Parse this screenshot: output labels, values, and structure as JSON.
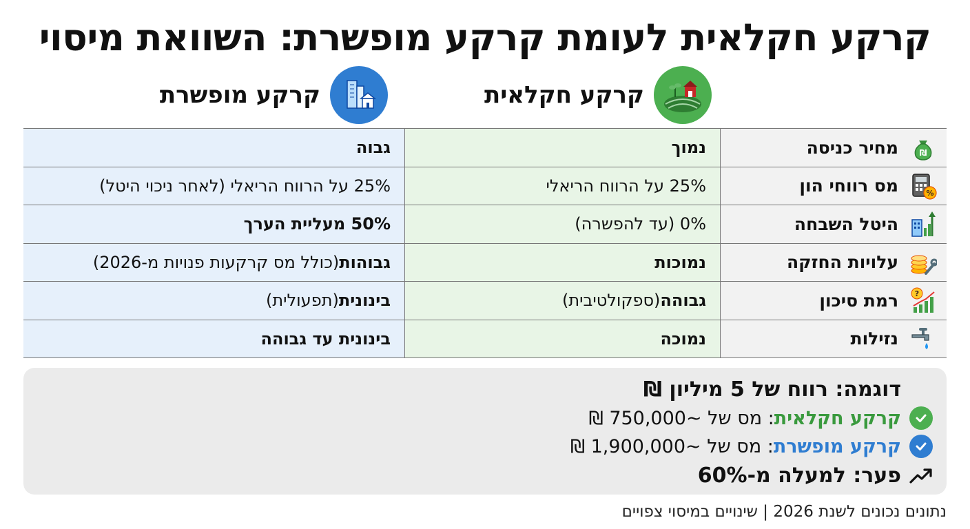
{
  "title": "קרקע חקלאית לעומת קרקע מופשרת: השוואת מיסוי",
  "columns": {
    "agricultural": {
      "label": "קרקע חקלאית",
      "icon": "farm-icon",
      "color": "#4caf50"
    },
    "developed": {
      "label": "קרקע מופשרת",
      "icon": "city-icon",
      "color": "#2f7dd1"
    }
  },
  "rows": [
    {
      "criterion": "מחיר כניסה",
      "icon": "money-bag-icon",
      "agri_bold": "נמוך",
      "agri_rest": "",
      "dev_bold": "גבוה",
      "dev_rest": ""
    },
    {
      "criterion": "מס רווחי הון",
      "icon": "calculator-icon",
      "agri_bold": "",
      "agri_rest": "25% על הרווח הריאלי",
      "dev_bold": "",
      "dev_rest": "25% על הרווח הריאלי (לאחר ניכוי היטל)"
    },
    {
      "criterion": "היטל השבחה",
      "icon": "building-growth-icon",
      "agri_bold": "",
      "agri_rest": "0% (עד להפשרה)",
      "dev_bold": "50% מעליית הערך",
      "dev_rest": ""
    },
    {
      "criterion": "עלויות החזקה",
      "icon": "coins-wrench-icon",
      "agri_bold": "נמוכות",
      "agri_rest": "",
      "dev_bold": "גבוהות",
      "dev_rest": " (כולל מס קרקעות פנויות מ-2026)"
    },
    {
      "criterion": "רמת סיכון",
      "icon": "risk-chart-icon",
      "agri_bold": "גבוהה",
      "agri_rest": " (ספקולטיבית)",
      "dev_bold": "בינונית",
      "dev_rest": " (תפעולית)"
    },
    {
      "criterion": "נזילות",
      "icon": "faucet-icon",
      "agri_bold": "נמוכה",
      "agri_rest": "",
      "dev_bold": "בינונית עד גבוהה",
      "dev_rest": ""
    }
  ],
  "example": {
    "title": "דוגמה: רווח של 5 מיליון ₪",
    "agri_label": "קרקע חקלאית",
    "agri_text": ": מס של ~750,000 ₪",
    "dev_label": "קרקע מופשרת",
    "dev_text": ": מס של ~1,900,000 ₪",
    "diff": "פער: למעלה מ-60%",
    "check_green": "#4caf50",
    "check_blue": "#2f7dd1"
  },
  "footer": "נתונים נכונים לשנת 2026 | שינויים במיסוי צפויים"
}
